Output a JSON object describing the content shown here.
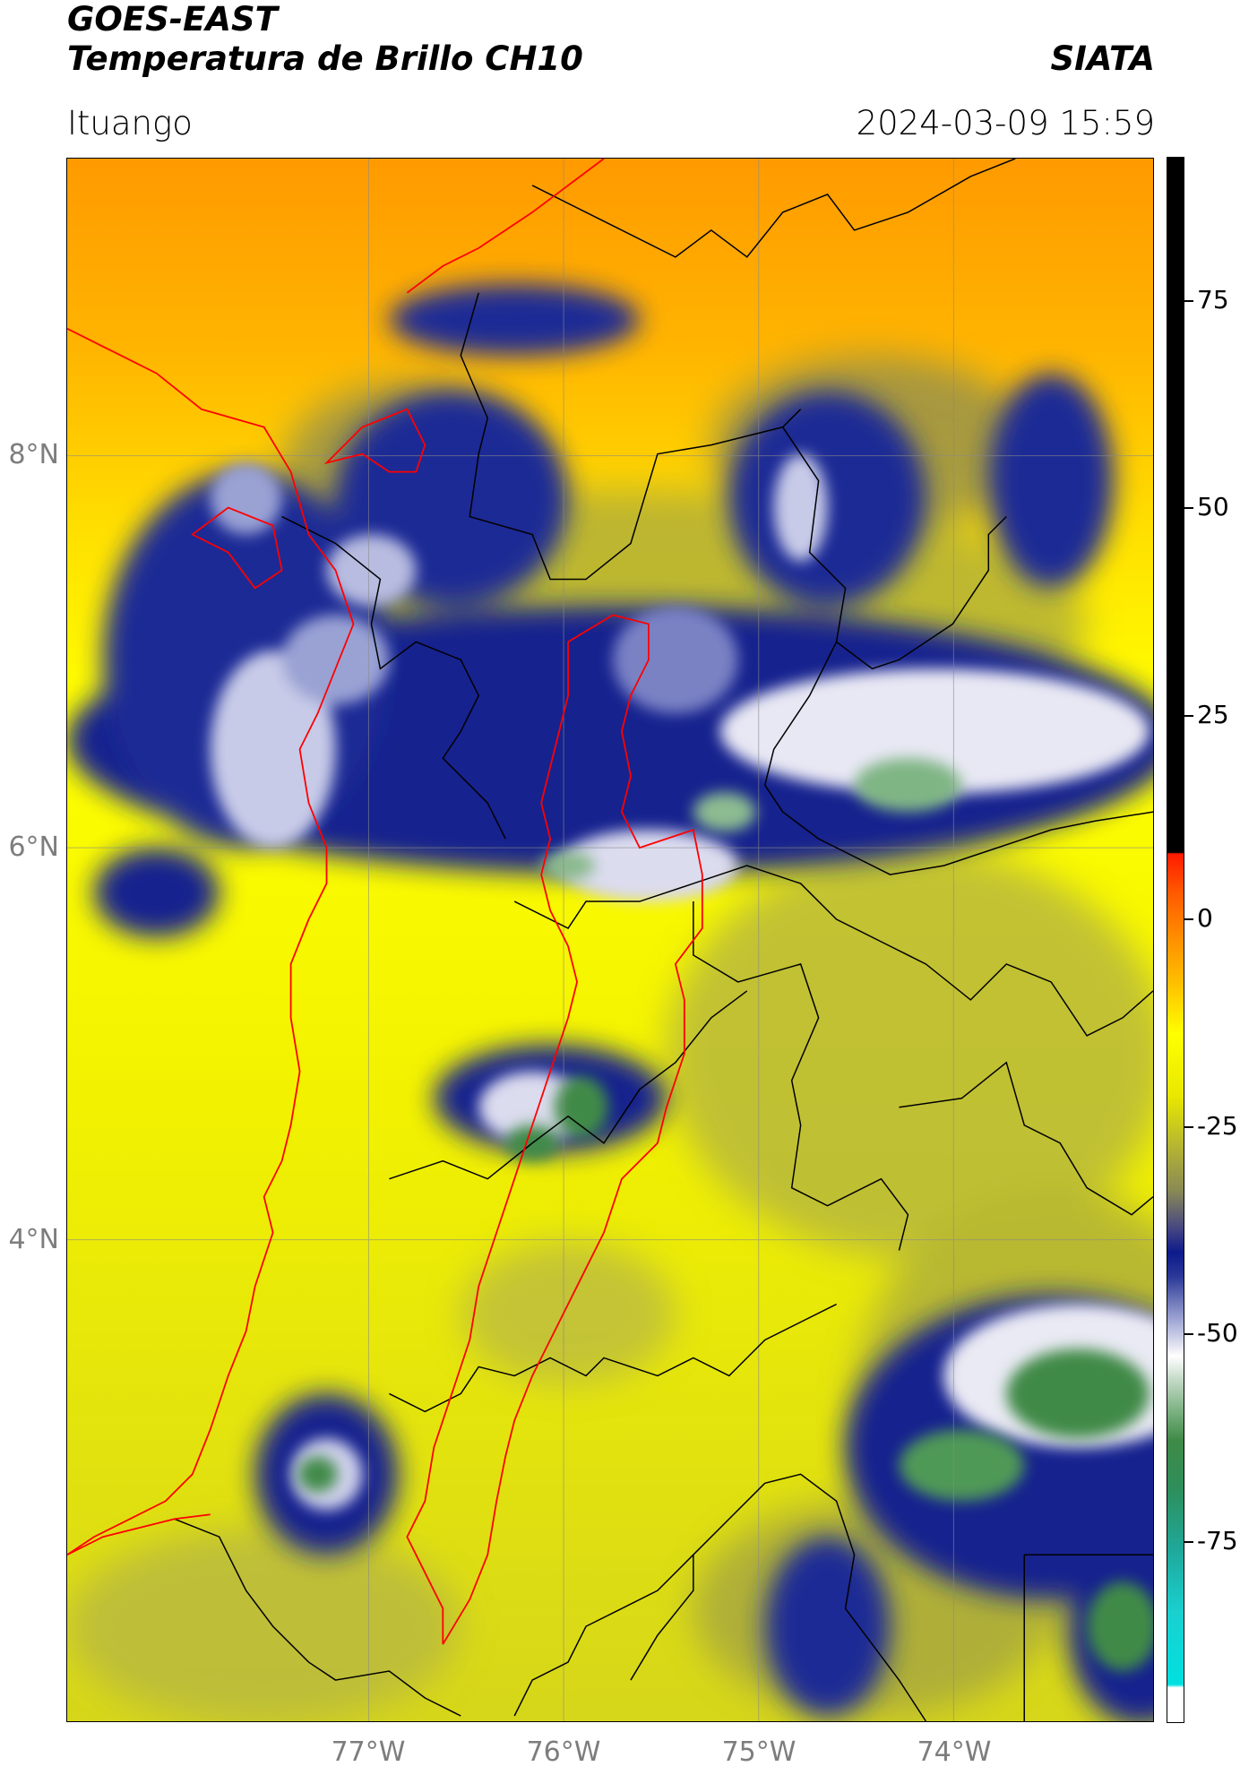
{
  "header": {
    "title_line1": "GOES-EAST",
    "title_line2": "Temperatura de Brillo CH10",
    "brand": "SIATA",
    "location": "Ituango",
    "datetime": "2024-03-09 15:59"
  },
  "map": {
    "lat_labels": [
      "8°N",
      "6°N",
      "4°N"
    ],
    "lon_labels": [
      "77°W",
      "76°W",
      "75°W",
      "74°W"
    ],
    "colors": {
      "warm": "#ff8c00",
      "medium": "#ffff00",
      "cool_olive": "#a8a840",
      "cold_blue": "#0d1a8c",
      "very_cold_white": "#ffffff",
      "coldest_green": "#3f8a47",
      "border_red": "#ff0000",
      "border_black": "#000000"
    }
  },
  "colorbar": {
    "ticks": [
      "75",
      "50",
      "25",
      "0",
      "-25",
      "-50",
      "-75"
    ]
  }
}
